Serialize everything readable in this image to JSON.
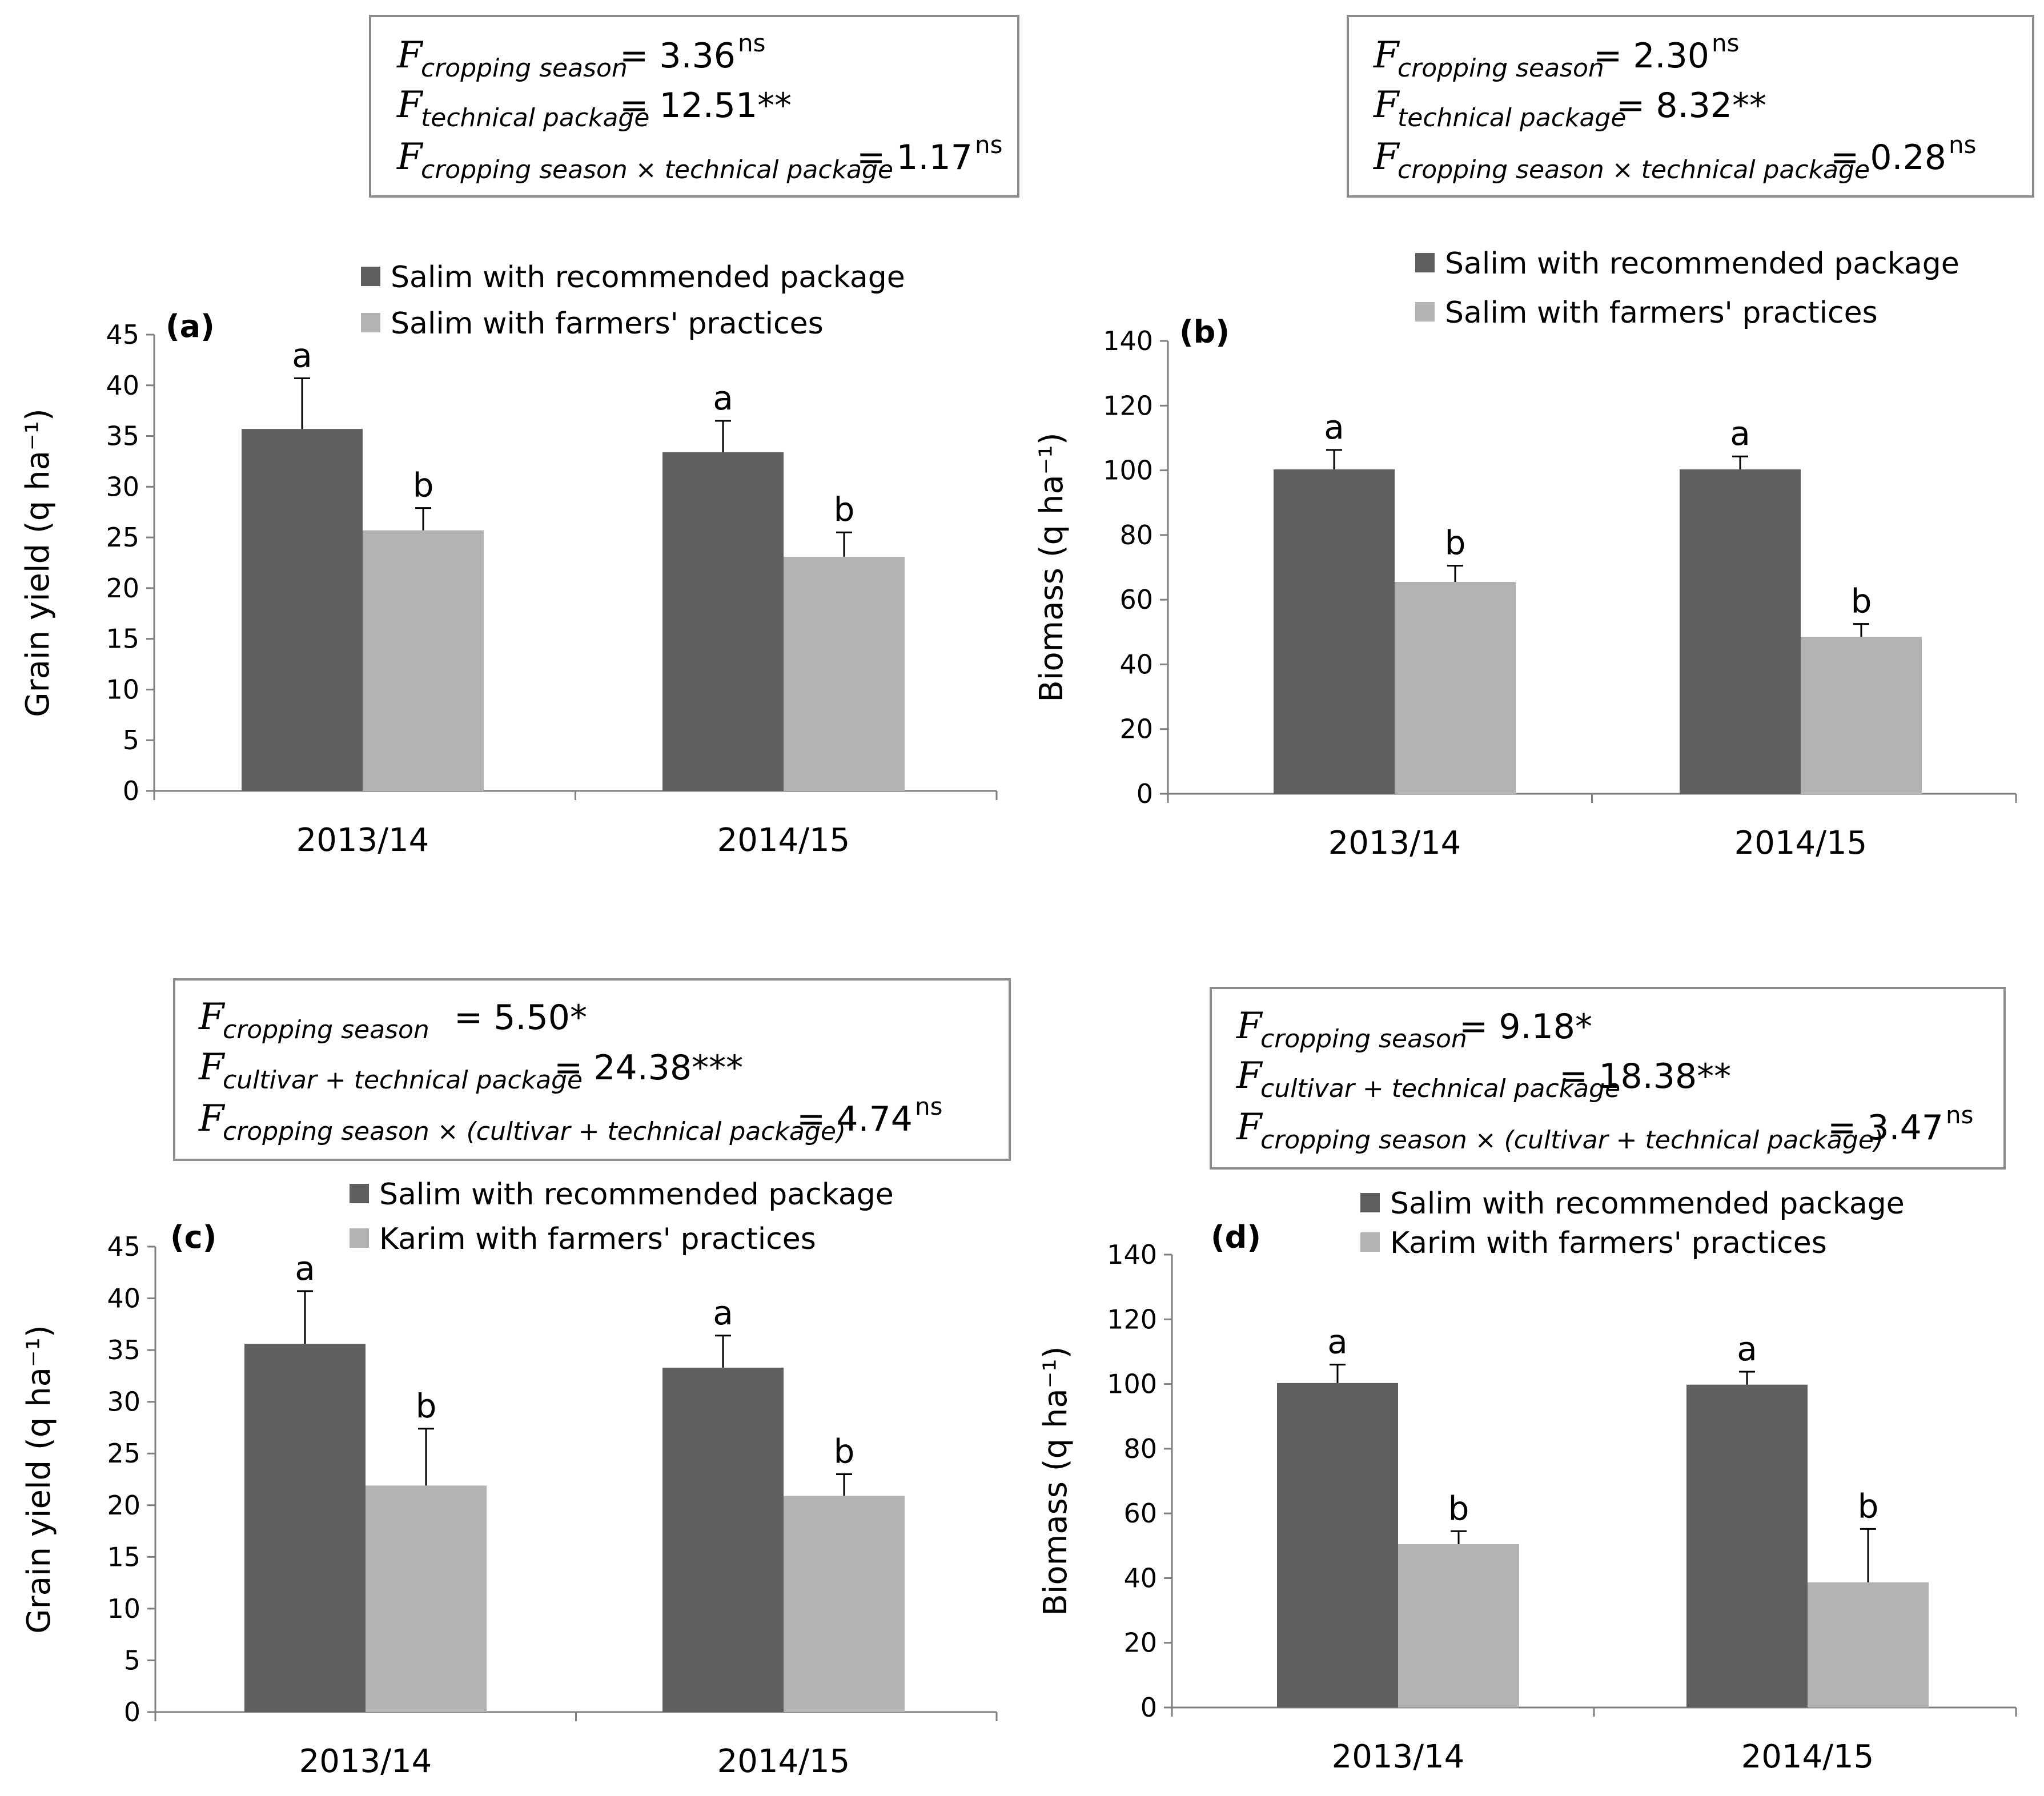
{
  "colors": {
    "recommended": "#5f5f5f",
    "farmers": "#b3b3b3",
    "axis": "#7f7f7f",
    "box_border": "#8c8c8c"
  },
  "chart_data": [
    {
      "type": "bar",
      "panel_label": "(a)",
      "categories": [
        "2013/14",
        "2014/15"
      ],
      "ylabel": "Grain yield (q ha⁻¹)",
      "ylim": [
        0,
        45
      ],
      "yticks": [
        0,
        5,
        10,
        15,
        20,
        25,
        30,
        35,
        40,
        45
      ],
      "grid": false,
      "legend_position": "top",
      "series": [
        {
          "name": "Salim with recommended package",
          "values": [
            35.7,
            33.4
          ],
          "errors": [
            5.0,
            3.1
          ],
          "letters": [
            "a",
            "a"
          ]
        },
        {
          "name": "Salim with farmers' practices",
          "values": [
            25.7,
            23.1
          ],
          "errors": [
            2.2,
            2.4
          ],
          "letters": [
            "b",
            "b"
          ]
        }
      ],
      "stats": [
        {
          "sub": "cropping season",
          "value": "= 3.36",
          "sig": "ns"
        },
        {
          "sub": "technical package",
          "value": "= 12.51**",
          "sig": ""
        },
        {
          "sub": "cropping season × technical package",
          "value": "= 1.17",
          "sig": "ns"
        }
      ]
    },
    {
      "type": "bar",
      "panel_label": "(b)",
      "categories": [
        "2013/14",
        "2014/15"
      ],
      "ylabel": "Biomass (q ha⁻¹)",
      "ylim": [
        0,
        140
      ],
      "yticks": [
        0,
        20,
        40,
        60,
        80,
        100,
        120,
        140
      ],
      "grid": false,
      "legend_position": "top",
      "series": [
        {
          "name": "Salim with recommended package",
          "values": [
            100.3,
            100.3
          ],
          "errors": [
            6.0,
            4.0
          ],
          "letters": [
            "a",
            "a"
          ]
        },
        {
          "name": "Salim with farmers' practices",
          "values": [
            65.5,
            48.5
          ],
          "errors": [
            5.0,
            4.0
          ],
          "letters": [
            "b",
            "b"
          ]
        }
      ],
      "stats": [
        {
          "sub": "cropping season",
          "value": "= 2.30",
          "sig": "ns"
        },
        {
          "sub": "technical package",
          "value": "= 8.32**",
          "sig": ""
        },
        {
          "sub": "cropping season × technical package",
          "value": "= 0.28",
          "sig": "ns"
        }
      ]
    },
    {
      "type": "bar",
      "panel_label": "(c)",
      "categories": [
        "2013/14",
        "2014/15"
      ],
      "ylabel": "Grain yield (q ha⁻¹)",
      "ylim": [
        0,
        45
      ],
      "yticks": [
        0,
        5,
        10,
        15,
        20,
        25,
        30,
        35,
        40,
        45
      ],
      "grid": false,
      "legend_position": "top",
      "series": [
        {
          "name": "Salim with recommended package",
          "values": [
            35.6,
            33.3
          ],
          "errors": [
            5.1,
            3.1
          ],
          "letters": [
            "a",
            "a"
          ]
        },
        {
          "name": "Karim with farmers' practices",
          "values": [
            21.9,
            20.9
          ],
          "errors": [
            5.5,
            2.1
          ],
          "letters": [
            "b",
            "b"
          ]
        }
      ],
      "stats": [
        {
          "sub": "cropping season",
          "value": "= 5.50*",
          "sig": ""
        },
        {
          "sub": "cultivar + technical package",
          "value": "= 24.38***",
          "sig": ""
        },
        {
          "sub": "cropping season ×  (cultivar + technical package)",
          "value": "= 4.74",
          "sig": "ns"
        }
      ]
    },
    {
      "type": "bar",
      "panel_label": "(d)",
      "categories": [
        "2013/14",
        "2014/15"
      ],
      "ylabel": "Biomass (q ha⁻¹)",
      "ylim": [
        0,
        140
      ],
      "yticks": [
        0,
        20,
        40,
        60,
        80,
        100,
        120,
        140
      ],
      "grid": false,
      "legend_position": "top",
      "series": [
        {
          "name": "Salim with recommended package",
          "values": [
            100.3,
            99.8
          ],
          "errors": [
            5.7,
            4.0
          ],
          "letters": [
            "a",
            "a"
          ]
        },
        {
          "name": "Karim with farmers' practices",
          "values": [
            50.5,
            38.7
          ],
          "errors": [
            4.0,
            16.5
          ],
          "letters": [
            "b",
            "b"
          ]
        }
      ],
      "stats": [
        {
          "sub": "cropping season",
          "value": "= 9.18*",
          "sig": ""
        },
        {
          "sub": "cultivar + technical package",
          "value": "= 18.38**",
          "sig": ""
        },
        {
          "sub": "cropping season ×  (cultivar + technical package)",
          "value": "= 3.47",
          "sig": "ns"
        }
      ]
    }
  ]
}
